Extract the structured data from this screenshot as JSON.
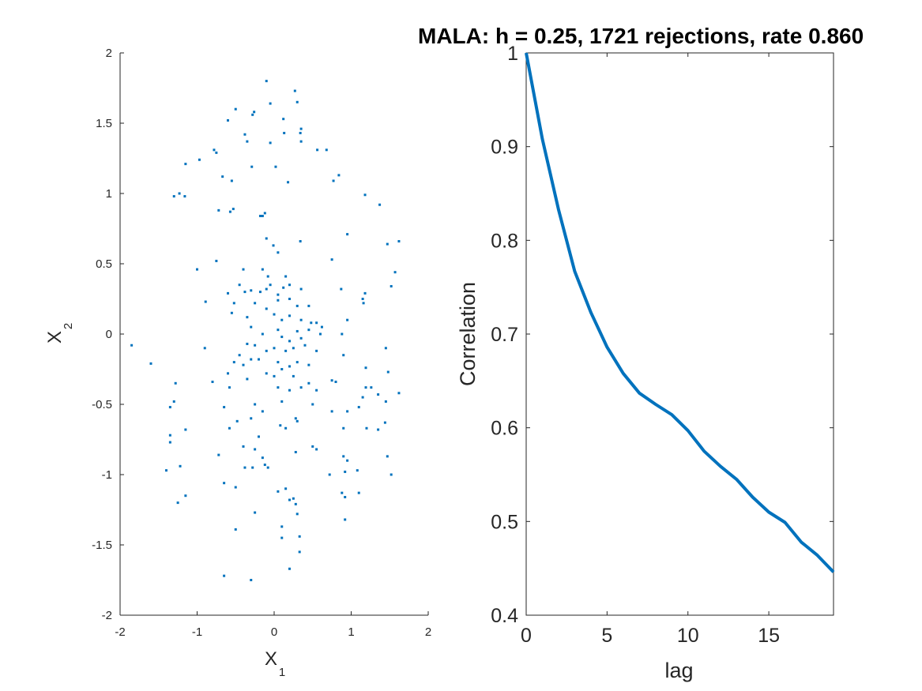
{
  "colors": {
    "series": "#0072BD",
    "axis": "#262626",
    "background": "#ffffff"
  },
  "chart_data": [
    {
      "type": "scatter",
      "title": "",
      "xlabel": "X",
      "xlabel_sub": "1",
      "ylabel": "X",
      "ylabel_sub": "2",
      "xlim": [
        -2,
        2
      ],
      "ylim": [
        -2,
        2
      ],
      "xticks": [
        -2,
        -1,
        0,
        1,
        2
      ],
      "yticks": [
        -2,
        -1.5,
        -1,
        -0.5,
        0,
        0.5,
        1,
        1.5,
        2
      ],
      "grid": false,
      "series": [
        {
          "points": [
            [
              -0.1,
              1.8
            ],
            [
              0.27,
              1.73
            ],
            [
              0.3,
              1.65
            ],
            [
              -0.05,
              1.64
            ],
            [
              -0.5,
              1.6
            ],
            [
              -0.26,
              1.58
            ],
            [
              -0.28,
              1.56
            ],
            [
              -0.6,
              1.52
            ],
            [
              0.12,
              1.53
            ],
            [
              0.35,
              1.46
            ],
            [
              0.34,
              1.43
            ],
            [
              0.13,
              1.43
            ],
            [
              -0.38,
              1.42
            ],
            [
              -0.35,
              1.37
            ],
            [
              0.35,
              1.37
            ],
            [
              -0.05,
              1.36
            ],
            [
              -0.78,
              1.31
            ],
            [
              -0.75,
              1.29
            ],
            [
              0.56,
              1.31
            ],
            [
              0.68,
              1.31
            ],
            [
              -0.97,
              1.24
            ],
            [
              -1.15,
              1.21
            ],
            [
              -0.29,
              1.19
            ],
            [
              0.02,
              1.19
            ],
            [
              -0.67,
              1.12
            ],
            [
              0.84,
              1.13
            ],
            [
              -0.55,
              1.09
            ],
            [
              0.18,
              1.08
            ],
            [
              0.77,
              1.09
            ],
            [
              -1.3,
              0.98
            ],
            [
              -1.23,
              1.0
            ],
            [
              -1.16,
              0.98
            ],
            [
              1.18,
              0.99
            ],
            [
              1.37,
              0.92
            ],
            [
              -0.72,
              0.88
            ],
            [
              -0.53,
              0.89
            ],
            [
              -0.57,
              0.87
            ],
            [
              -0.18,
              0.84
            ],
            [
              -0.15,
              0.84
            ],
            [
              -0.12,
              0.86
            ],
            [
              0.95,
              0.71
            ],
            [
              -0.1,
              0.68
            ],
            [
              0.34,
              0.66
            ],
            [
              1.62,
              0.66
            ],
            [
              1.47,
              0.64
            ],
            [
              -0.01,
              0.63
            ],
            [
              0.05,
              0.58
            ],
            [
              -0.75,
              0.52
            ],
            [
              0.75,
              0.53
            ],
            [
              -1.0,
              0.46
            ],
            [
              -0.4,
              0.46
            ],
            [
              1.57,
              0.44
            ],
            [
              -0.15,
              0.46
            ],
            [
              -0.08,
              0.41
            ],
            [
              0.15,
              0.41
            ],
            [
              -0.05,
              0.35
            ],
            [
              0.12,
              0.33
            ],
            [
              -0.45,
              0.35
            ],
            [
              -0.38,
              0.3
            ],
            [
              -0.3,
              0.31
            ],
            [
              -0.18,
              0.3
            ],
            [
              -0.1,
              0.32
            ],
            [
              0.05,
              0.28
            ],
            [
              0.2,
              0.25
            ],
            [
              0.35,
              0.32
            ],
            [
              0.2,
              0.35
            ],
            [
              1.52,
              0.34
            ],
            [
              0.87,
              0.32
            ],
            [
              1.18,
              0.29
            ],
            [
              -0.89,
              0.23
            ],
            [
              -0.6,
              0.29
            ],
            [
              -0.52,
              0.22
            ],
            [
              0.05,
              0.24
            ],
            [
              -0.25,
              0.22
            ],
            [
              0.3,
              0.2
            ],
            [
              0.45,
              0.2
            ],
            [
              1.15,
              0.25
            ],
            [
              1.16,
              0.22
            ],
            [
              -0.55,
              0.15
            ],
            [
              -0.1,
              0.18
            ],
            [
              0.0,
              0.14
            ],
            [
              0.1,
              0.1
            ],
            [
              0.2,
              0.13
            ],
            [
              0.35,
              0.1
            ],
            [
              -0.35,
              0.12
            ],
            [
              0.55,
              0.08
            ],
            [
              0.48,
              0.08
            ],
            [
              0.62,
              0.05
            ],
            [
              0.95,
              0.1
            ],
            [
              -0.3,
              0.05
            ],
            [
              0.05,
              0.03
            ],
            [
              0.3,
              0.02
            ],
            [
              0.45,
              0.03
            ],
            [
              0.6,
              0.0
            ],
            [
              0.88,
              0.0
            ],
            [
              -0.15,
              0.0
            ],
            [
              0.1,
              -0.02
            ],
            [
              0.2,
              -0.05
            ],
            [
              0.35,
              -0.03
            ],
            [
              -0.9,
              -0.1
            ],
            [
              -0.35,
              -0.07
            ],
            [
              -0.25,
              -0.08
            ],
            [
              0.0,
              -0.1
            ],
            [
              0.25,
              -0.1
            ],
            [
              0.4,
              -0.08
            ],
            [
              -0.1,
              -0.12
            ],
            [
              0.15,
              -0.12
            ],
            [
              0.55,
              -0.12
            ],
            [
              1.45,
              -0.1
            ],
            [
              -0.45,
              -0.15
            ],
            [
              0.9,
              -0.15
            ],
            [
              -0.3,
              -0.18
            ],
            [
              -0.2,
              -0.18
            ],
            [
              0.05,
              -0.2
            ],
            [
              0.3,
              -0.2
            ],
            [
              0.45,
              -0.22
            ],
            [
              -1.85,
              -0.08
            ],
            [
              -1.6,
              -0.21
            ],
            [
              -0.52,
              -0.2
            ],
            [
              -0.4,
              -0.22
            ],
            [
              0.1,
              -0.25
            ],
            [
              0.2,
              -0.23
            ],
            [
              1.48,
              -0.27
            ],
            [
              1.19,
              -0.24
            ],
            [
              -0.6,
              -0.28
            ],
            [
              -0.1,
              -0.28
            ],
            [
              0.0,
              -0.3
            ],
            [
              0.25,
              -0.3
            ],
            [
              0.75,
              -0.33
            ],
            [
              -0.8,
              -0.34
            ],
            [
              -0.35,
              -0.32
            ],
            [
              0.45,
              -0.35
            ],
            [
              0.8,
              -0.34
            ],
            [
              -1.28,
              -0.35
            ],
            [
              0.05,
              -0.38
            ],
            [
              0.35,
              -0.38
            ],
            [
              1.26,
              -0.38
            ],
            [
              1.19,
              -0.38
            ],
            [
              0.2,
              -0.4
            ],
            [
              -0.58,
              -0.38
            ],
            [
              0.55,
              -0.4
            ],
            [
              1.35,
              -0.43
            ],
            [
              1.62,
              -0.42
            ],
            [
              -1.35,
              -0.52
            ],
            [
              -1.3,
              -0.48
            ],
            [
              -0.25,
              -0.5
            ],
            [
              0.1,
              -0.48
            ],
            [
              0.5,
              -0.5
            ],
            [
              -0.65,
              -0.52
            ],
            [
              0.75,
              -0.55
            ],
            [
              0.95,
              -0.55
            ],
            [
              1.1,
              -0.52
            ],
            [
              1.45,
              -0.48
            ],
            [
              1.15,
              -0.45
            ],
            [
              -0.15,
              -0.55
            ],
            [
              -0.3,
              -0.6
            ],
            [
              0.28,
              -0.6
            ],
            [
              0.3,
              -0.62
            ],
            [
              1.44,
              -0.63
            ],
            [
              -0.48,
              -0.62
            ],
            [
              0.08,
              -0.65
            ],
            [
              0.15,
              -0.67
            ],
            [
              -0.58,
              -0.67
            ],
            [
              0.9,
              -0.67
            ],
            [
              1.2,
              -0.67
            ],
            [
              -1.15,
              -0.68
            ],
            [
              1.35,
              -0.68
            ],
            [
              -1.35,
              -0.72
            ],
            [
              -0.2,
              -0.73
            ],
            [
              -1.35,
              -0.77
            ],
            [
              -0.4,
              -0.8
            ],
            [
              0.5,
              -0.8
            ],
            [
              0.55,
              -0.82
            ],
            [
              -0.25,
              -0.82
            ],
            [
              0.28,
              -0.84
            ],
            [
              -0.72,
              -0.86
            ],
            [
              -0.15,
              -0.88
            ],
            [
              0.9,
              -0.87
            ],
            [
              0.95,
              -0.9
            ],
            [
              1.47,
              -0.87
            ],
            [
              -0.38,
              -0.95
            ],
            [
              -0.28,
              -0.95
            ],
            [
              -0.12,
              -0.93
            ],
            [
              -0.08,
              -0.95
            ],
            [
              -1.22,
              -0.94
            ],
            [
              1.08,
              -0.97
            ],
            [
              -1.4,
              -0.97
            ],
            [
              0.92,
              -0.98
            ],
            [
              1.52,
              -1.0
            ],
            [
              0.72,
              -1.0
            ],
            [
              -0.65,
              -1.06
            ],
            [
              -0.5,
              -1.09
            ],
            [
              0.15,
              -1.1
            ],
            [
              0.05,
              -1.12
            ],
            [
              0.88,
              -1.13
            ],
            [
              1.1,
              -1.13
            ],
            [
              0.92,
              -1.16
            ],
            [
              -1.15,
              -1.15
            ],
            [
              0.25,
              -1.17
            ],
            [
              0.2,
              -1.18
            ],
            [
              0.28,
              -1.21
            ],
            [
              -1.25,
              -1.2
            ],
            [
              -0.25,
              -1.27
            ],
            [
              0.3,
              -1.28
            ],
            [
              0.92,
              -1.32
            ],
            [
              0.1,
              -1.37
            ],
            [
              -0.5,
              -1.39
            ],
            [
              0.33,
              -1.44
            ],
            [
              0.1,
              -1.45
            ],
            [
              0.33,
              -1.55
            ],
            [
              0.2,
              -1.67
            ],
            [
              -0.65,
              -1.72
            ],
            [
              -0.3,
              -1.75
            ]
          ]
        }
      ]
    },
    {
      "type": "line",
      "title": "MALA: h = 0.25, 1721 rejections, rate 0.860",
      "xlabel": "lag",
      "ylabel": "Correlation",
      "xlim": [
        0,
        19
      ],
      "ylim": [
        0.4,
        1
      ],
      "xticks": [
        0,
        5,
        10,
        15
      ],
      "yticks": [
        0.4,
        0.5,
        0.6,
        0.7,
        0.8,
        0.9,
        1
      ],
      "grid": false,
      "series": [
        {
          "x": [
            0,
            1,
            2,
            3,
            4,
            5,
            6,
            7,
            8,
            9,
            10,
            11,
            12,
            13,
            14,
            15,
            16,
            17,
            18,
            19
          ],
          "y": [
            1.0,
            0.908,
            0.833,
            0.767,
            0.723,
            0.686,
            0.658,
            0.637,
            0.625,
            0.614,
            0.597,
            0.575,
            0.559,
            0.545,
            0.526,
            0.51,
            0.499,
            0.478,
            0.464,
            0.446
          ]
        }
      ]
    }
  ]
}
